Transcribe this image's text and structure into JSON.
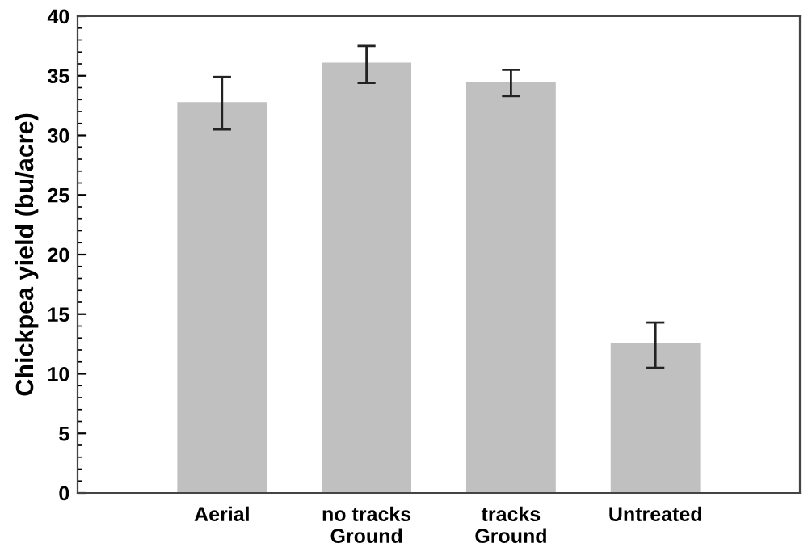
{
  "chart_data": {
    "type": "bar",
    "ylabel": "Chickpea yield (bu/acre)",
    "categories": [
      "Aerial",
      "no tracks\nGround",
      "tracks\nGround",
      "Untreated"
    ],
    "values": [
      32.8,
      36.1,
      34.5,
      12.6
    ],
    "errors": [
      [
        30.5,
        34.9
      ],
      [
        34.4,
        37.5
      ],
      [
        33.3,
        35.5
      ],
      [
        10.5,
        14.3
      ]
    ],
    "color": "#c0c0c0",
    "ylim": [
      0,
      40
    ],
    "yticks": [
      0,
      5,
      10,
      15,
      20,
      25,
      30,
      35,
      40
    ],
    "grid": false
  }
}
